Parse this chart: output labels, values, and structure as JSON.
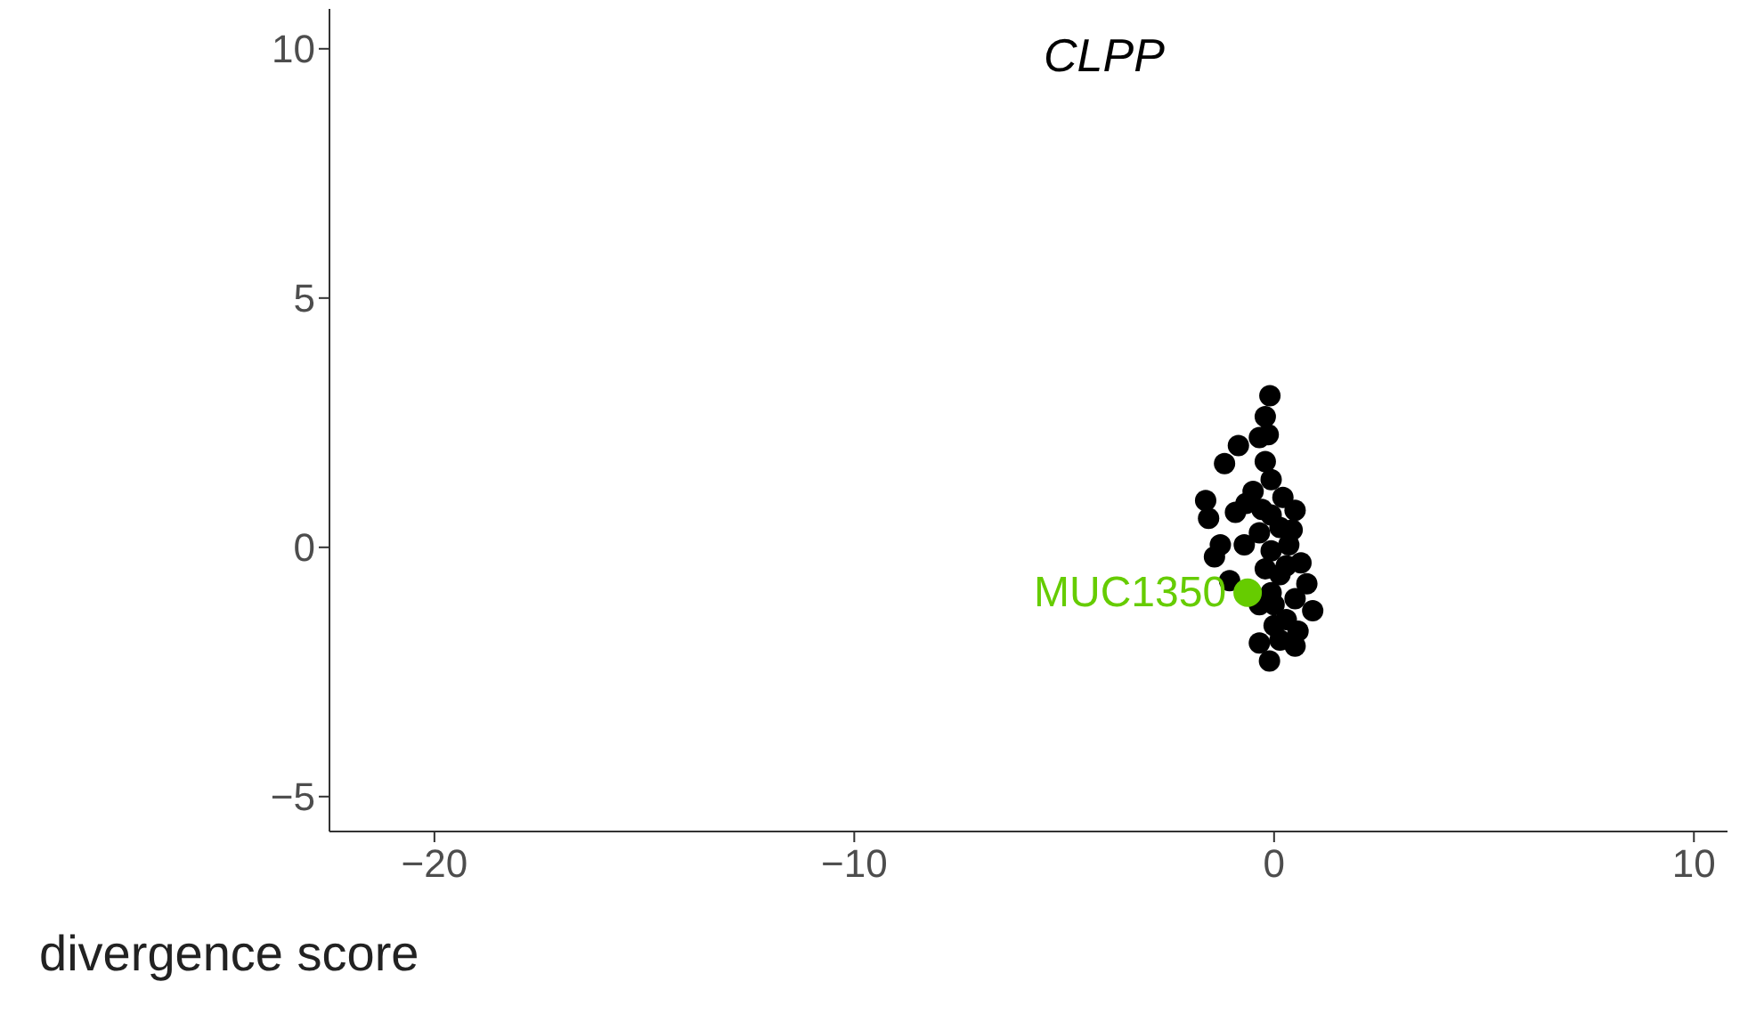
{
  "chart_data": {
    "type": "scatter",
    "title": "CLPP",
    "xlabel": "divergence score",
    "xlim": [
      -22.5,
      10.8
    ],
    "xticks": [
      -20,
      -10,
      0,
      10
    ],
    "ylim": [
      -5.7,
      10.8
    ],
    "yticks": [
      -5,
      0,
      5,
      10
    ],
    "grid": false,
    "legend": false,
    "marker": "circle",
    "series": [
      {
        "color": "#000000",
        "x": [
          -0.1,
          -0.21,
          -0.14,
          -0.35,
          -0.85,
          -0.21,
          -1.18,
          -0.07,
          -1.63,
          -1.56,
          -0.92,
          0.5,
          -0.67,
          0.21,
          0.43,
          -1.28,
          -1.42,
          -0.71,
          0.64,
          0.29,
          -1.06,
          0.78,
          -0.07,
          0.92,
          0.29,
          0.57,
          -0.35,
          0.14,
          0.5,
          -0.11,
          -0.5,
          -0.29,
          -0.07,
          0.14,
          -0.35,
          -0.07,
          -0.21,
          0.14,
          0.35,
          0,
          0.5,
          -0.35,
          0
        ],
        "values": [
          3.04,
          2.62,
          2.26,
          2.2,
          2.04,
          1.72,
          1.68,
          1.36,
          0.94,
          0.58,
          0.7,
          0.74,
          0.88,
          1.0,
          0.35,
          0.05,
          -0.19,
          0.05,
          -0.31,
          -0.37,
          -0.67,
          -0.73,
          -0.91,
          -1.27,
          -1.45,
          -1.68,
          -1.92,
          -1.86,
          -1.98,
          -2.28,
          1.12,
          0.76,
          0.65,
          0.4,
          0.29,
          -0.07,
          -0.43,
          -0.55,
          0.05,
          -1.15,
          -1.03,
          -1.15,
          -1.57
        ]
      },
      {
        "name": "MUC1350",
        "color": "#66cc00",
        "x": [
          -0.63
        ],
        "values": [
          -0.91
        ]
      }
    ]
  }
}
